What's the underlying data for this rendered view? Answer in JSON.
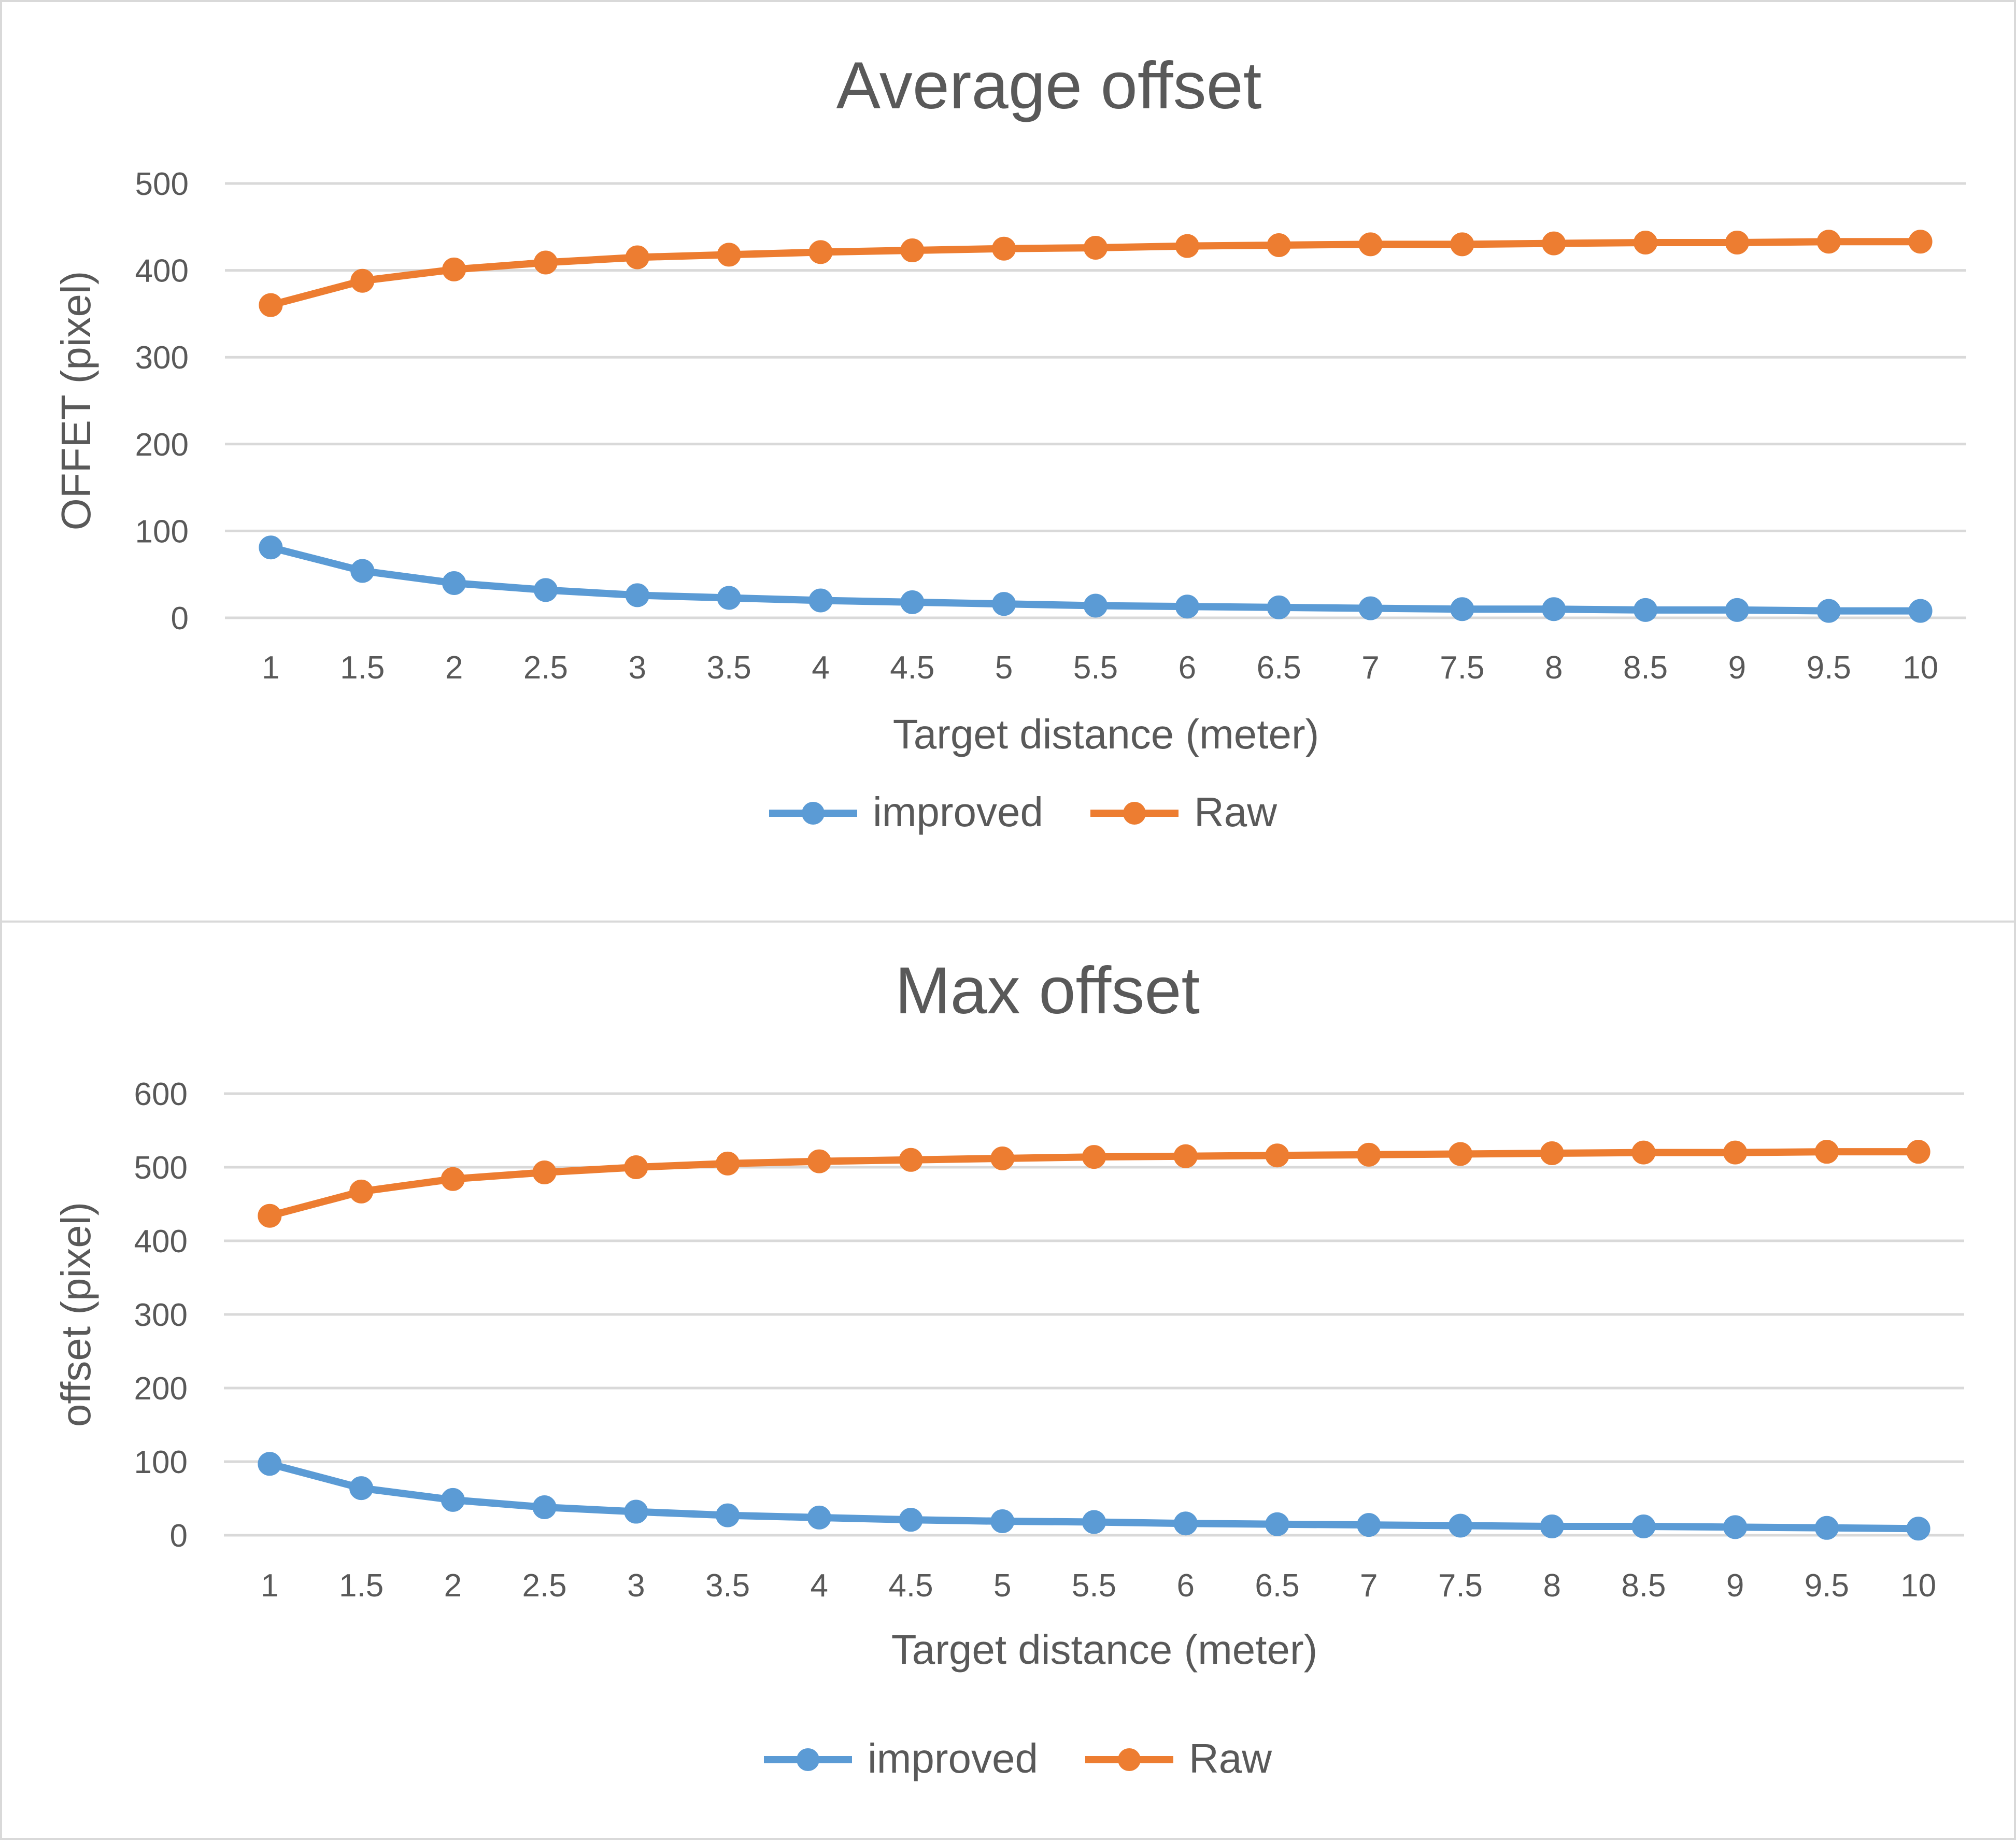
{
  "colors": {
    "improved": "#5b9bd5",
    "raw": "#ed7d31",
    "grid": "#d9d9d9",
    "text": "#595959",
    "title": "#595959"
  },
  "chart_data": [
    {
      "type": "line",
      "title": "Average offset",
      "xlabel": "Target distance (meter)",
      "ylabel": "OFFET (pixel)",
      "ylim": [
        0,
        500
      ],
      "yticks": [
        "0",
        "100",
        "200",
        "300",
        "400",
        "500"
      ],
      "grid": true,
      "legend_position": "bottom",
      "categories": [
        "1",
        "1.5",
        "2",
        "2.5",
        "3",
        "3.5",
        "4",
        "4.5",
        "5",
        "5.5",
        "6",
        "6.5",
        "7",
        "7.5",
        "8",
        "8.5",
        "9",
        "9.5",
        "10"
      ],
      "series": [
        {
          "name": "improved",
          "values": [
            81,
            54,
            40,
            32,
            26,
            23,
            20,
            18,
            16,
            14,
            13,
            12,
            11,
            10,
            10,
            9,
            9,
            8,
            8
          ]
        },
        {
          "name": "Raw",
          "values": [
            360,
            388,
            401,
            409,
            415,
            418,
            421,
            423,
            425,
            426,
            428,
            429,
            430,
            430,
            431,
            432,
            432,
            433,
            433
          ]
        }
      ]
    },
    {
      "type": "line",
      "title": "Max offset",
      "xlabel": "Target distance (meter)",
      "ylabel": "offset (pixel)",
      "ylim": [
        0,
        600
      ],
      "yticks": [
        "0",
        "100",
        "200",
        "300",
        "400",
        "500",
        "600"
      ],
      "grid": true,
      "legend_position": "bottom",
      "categories": [
        "1",
        "1.5",
        "2",
        "2.5",
        "3",
        "3.5",
        "4",
        "4.5",
        "5",
        "5.5",
        "6",
        "6.5",
        "7",
        "7.5",
        "8",
        "8.5",
        "9",
        "9.5",
        "10"
      ],
      "series": [
        {
          "name": "improved",
          "values": [
            97,
            64,
            48,
            38,
            32,
            27,
            24,
            21,
            19,
            18,
            16,
            15,
            14,
            13,
            12,
            12,
            11,
            10,
            9
          ]
        },
        {
          "name": "Raw",
          "values": [
            434,
            467,
            484,
            493,
            500,
            505,
            508,
            510,
            512,
            514,
            515,
            516,
            517,
            518,
            519,
            520,
            520,
            521,
            521
          ]
        }
      ]
    }
  ]
}
